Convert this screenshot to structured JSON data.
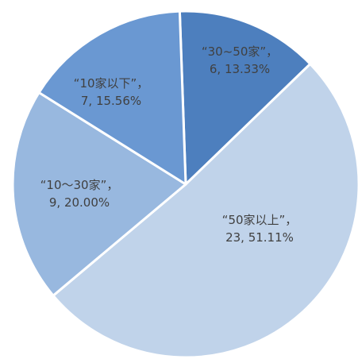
{
  "chart_data": {
    "type": "pie",
    "title": "",
    "slices": [
      {
        "name": "“30~50家”",
        "count": 6,
        "percent": "13.33%",
        "value": 13.33,
        "color": "#4d7fbe",
        "line1": "“30~50家”，",
        "line2": "6, 13.33%"
      },
      {
        "name": "“50家以上”",
        "count": 23,
        "percent": "51.11%",
        "value": 51.11,
        "color": "#c0d3ea",
        "line1": "“50家以上”，",
        "line2": "23, 51.11%"
      },
      {
        "name": "“10～30家”",
        "count": 9,
        "percent": "20.00%",
        "value": 20.0,
        "color": "#98b8df",
        "line1": "“10～30家”，",
        "line2": "9, 20.00%"
      },
      {
        "name": "“10家以下”",
        "count": 7,
        "percent": "15.56%",
        "value": 15.56,
        "color": "#6a98d2",
        "line1": "“10家以下”，",
        "line2": "7, 15.56%"
      }
    ]
  }
}
